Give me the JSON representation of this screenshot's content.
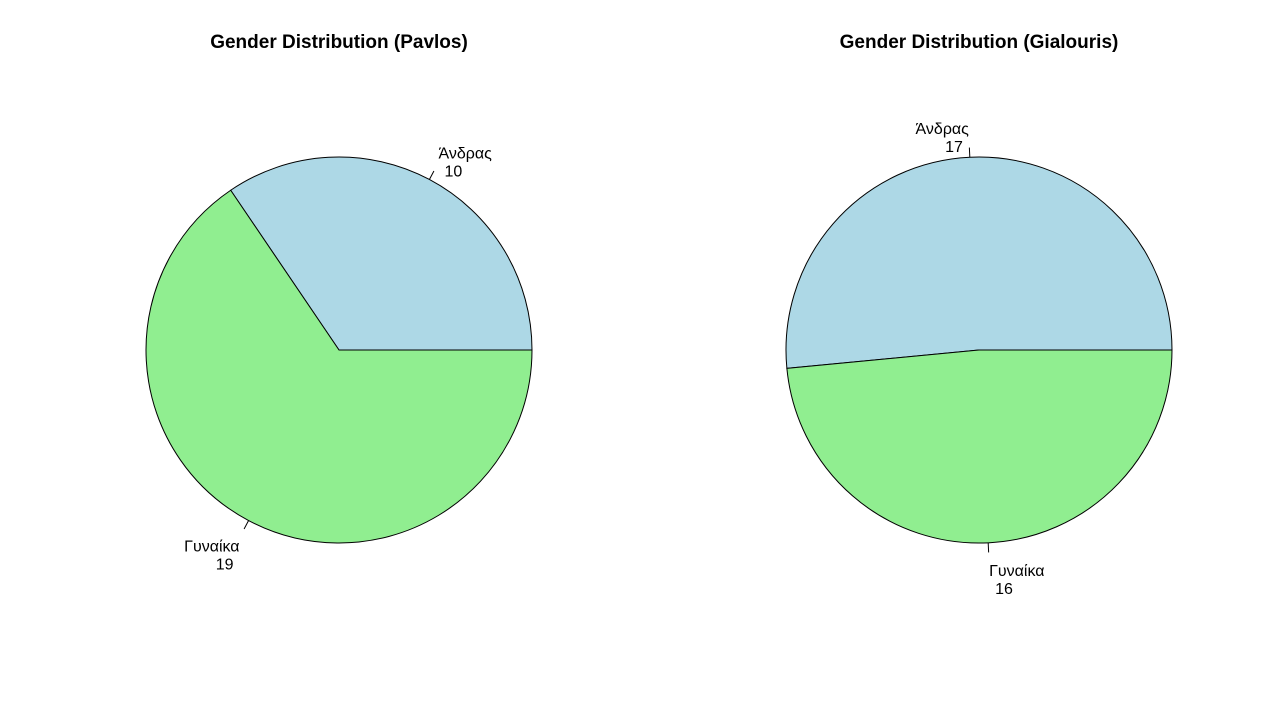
{
  "chart_data": [
    {
      "type": "pie",
      "title": "Gender Distribution (Pavlos)",
      "slices": [
        {
          "category": "Άνδρας",
          "value": 10,
          "color": "#ADD8E6"
        },
        {
          "category": "Γυναίκα",
          "value": 19,
          "color": "#90EE90"
        }
      ]
    },
    {
      "type": "pie",
      "title": "Gender Distribution (Gialouris)",
      "slices": [
        {
          "category": "Άνδρας",
          "value": 17,
          "color": "#ADD8E6"
        },
        {
          "category": "Γυναίκα",
          "value": 16,
          "color": "#90EE90"
        }
      ]
    }
  ]
}
